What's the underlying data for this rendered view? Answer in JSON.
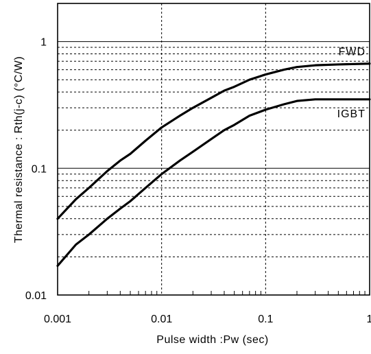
{
  "chart_data": {
    "type": "line",
    "title": "",
    "xlabel": "Pulse width :Pw (sec)",
    "ylabel": "Thermal resistance : Rth(j-c)  (°C/W)",
    "x_scale": "log",
    "y_scale": "log",
    "xlim": [
      0.001,
      1
    ],
    "ylim": [
      0.01,
      2
    ],
    "x_ticks": [
      0.001,
      0.01,
      0.1,
      1
    ],
    "x_tick_labels": [
      "0.001",
      "0.01",
      "0.1",
      "1"
    ],
    "y_ticks": [
      0.01,
      0.1,
      1
    ],
    "y_tick_labels": [
      "0.01",
      "0.1",
      "1"
    ],
    "grid": true,
    "line_color": "#000000",
    "series": [
      {
        "name": "FWD",
        "x": [
          0.001,
          0.0015,
          0.002,
          0.003,
          0.004,
          0.005,
          0.007,
          0.01,
          0.015,
          0.02,
          0.03,
          0.04,
          0.05,
          0.07,
          0.1,
          0.15,
          0.2,
          0.3,
          0.5,
          1
        ],
        "y": [
          0.04,
          0.057,
          0.07,
          0.095,
          0.115,
          0.13,
          0.165,
          0.21,
          0.26,
          0.3,
          0.36,
          0.41,
          0.44,
          0.5,
          0.55,
          0.6,
          0.63,
          0.65,
          0.66,
          0.67
        ]
      },
      {
        "name": "IGBT",
        "x": [
          0.001,
          0.0015,
          0.002,
          0.003,
          0.004,
          0.005,
          0.007,
          0.01,
          0.015,
          0.02,
          0.03,
          0.04,
          0.05,
          0.07,
          0.1,
          0.15,
          0.2,
          0.3,
          0.5,
          1
        ],
        "y": [
          0.017,
          0.025,
          0.03,
          0.04,
          0.048,
          0.055,
          0.07,
          0.09,
          0.115,
          0.135,
          0.17,
          0.2,
          0.22,
          0.26,
          0.29,
          0.32,
          0.34,
          0.35,
          0.35,
          0.35
        ]
      }
    ]
  }
}
